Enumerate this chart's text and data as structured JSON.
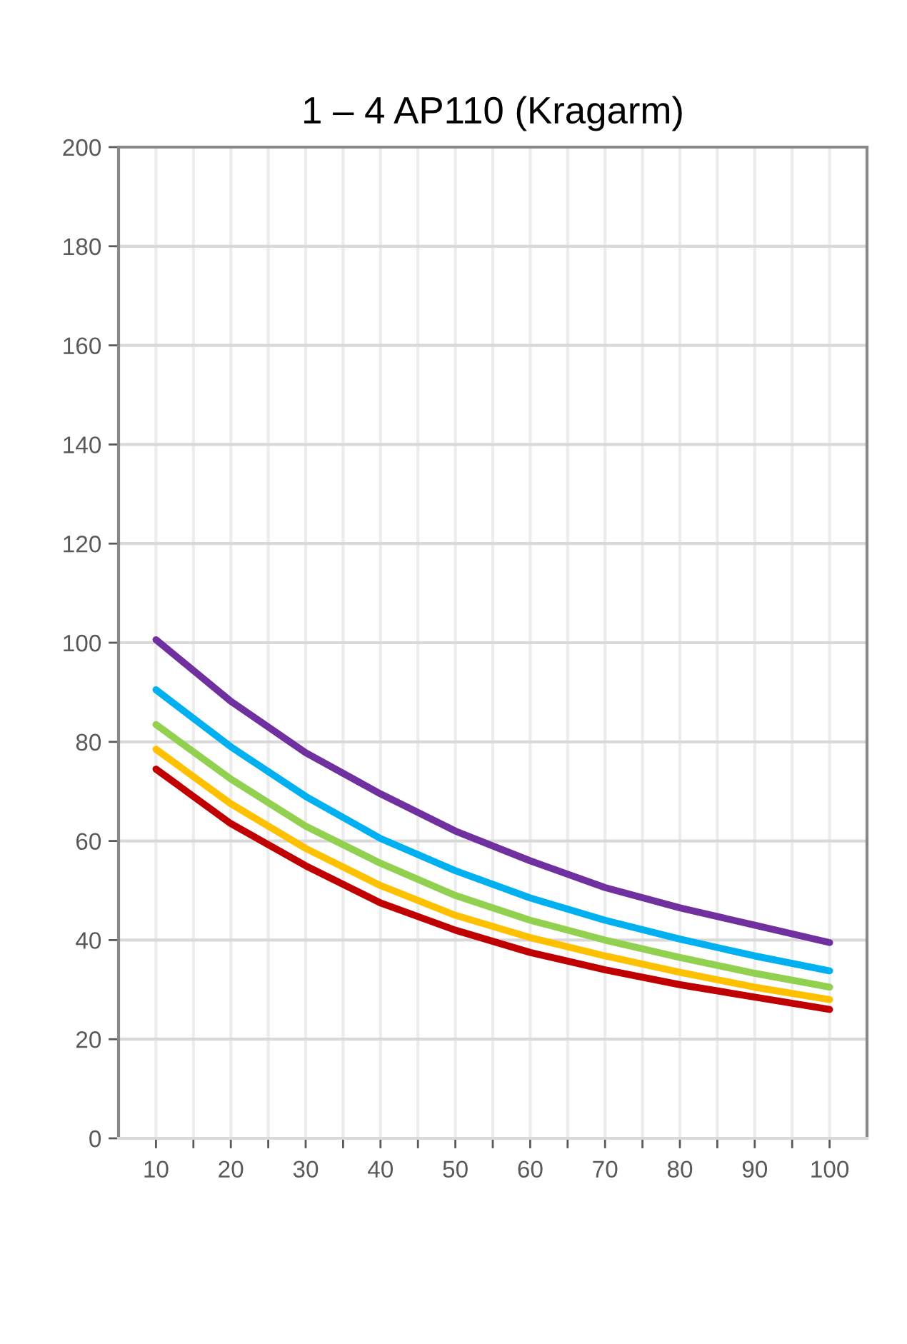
{
  "chart_data": {
    "type": "line",
    "title": "1 – 4 AP110 (Kragarm)",
    "x": [
      10,
      20,
      30,
      40,
      50,
      60,
      70,
      80,
      90,
      100
    ],
    "series": [
      {
        "color": "#7030a0",
        "values": [
          100.6,
          88.2,
          77.8,
          69.5,
          62,
          56,
          50.6,
          46.5,
          43,
          39.5
        ]
      },
      {
        "color": "#00b0f0",
        "values": [
          90.5,
          79,
          69,
          60.5,
          54,
          48.5,
          44,
          40.2,
          36.8,
          33.8
        ]
      },
      {
        "color": "#92d050",
        "values": [
          83.5,
          72.5,
          63,
          55.5,
          49,
          44,
          40,
          36.5,
          33.3,
          30.5
        ]
      },
      {
        "color": "#ffc000",
        "values": [
          78.5,
          67.5,
          58.5,
          51,
          45,
          40.5,
          36.8,
          33.5,
          30.5,
          28
        ]
      },
      {
        "color": "#c00000",
        "values": [
          74.5,
          63.5,
          55,
          47.5,
          42,
          37.5,
          34,
          31,
          28.5,
          26
        ]
      }
    ],
    "xlim": [
      5,
      105
    ],
    "xticks": [
      10,
      {
        "value": 15,
        "label": null
      },
      20,
      {
        "value": 25,
        "label": null
      },
      30,
      {
        "value": 35,
        "label": null
      },
      40,
      {
        "value": 45,
        "label": null
      },
      50,
      {
        "value": 55,
        "label": null
      },
      60,
      {
        "value": 65,
        "label": null
      },
      70,
      {
        "value": 75,
        "label": null
      },
      80,
      {
        "value": 85,
        "label": null
      },
      90,
      {
        "value": 95,
        "label": null
      },
      100
    ],
    "ylim": [
      0,
      200
    ],
    "yticks": [
      0,
      20,
      40,
      60,
      80,
      100,
      120,
      140,
      160,
      180,
      200
    ],
    "grid": true,
    "marker": "none",
    "line_style": "solid"
  }
}
